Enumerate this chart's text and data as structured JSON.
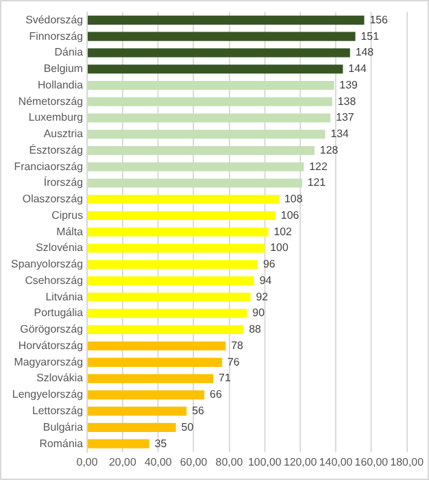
{
  "chart_data": {
    "type": "bar",
    "orientation": "horizontal",
    "categories": [
      "Svédország",
      "Finnország",
      "Dánia",
      "Belgium",
      "Hollandia",
      "Németország",
      "Luxemburg",
      "Ausztria",
      "Észtország",
      "Franciaország",
      "Írország",
      "Olaszország",
      "Ciprus",
      "Málta",
      "Szlovénia",
      "Spanyolország",
      "Csehország",
      "Litvánia",
      "Portugália",
      "Görögország",
      "Horvátország",
      "Magyarország",
      "Szlovákia",
      "Lengyelország",
      "Lettország",
      "Bulgária",
      "Románia"
    ],
    "values": [
      156,
      151,
      148,
      144,
      139,
      138,
      137,
      134,
      128,
      122,
      121,
      108,
      106,
      102,
      100,
      96,
      94,
      92,
      90,
      88,
      78,
      76,
      71,
      66,
      56,
      50,
      35
    ],
    "colors": [
      "#375623",
      "#375623",
      "#375623",
      "#375623",
      "#c5e0b4",
      "#c5e0b4",
      "#c5e0b4",
      "#c5e0b4",
      "#c5e0b4",
      "#c5e0b4",
      "#c5e0b4",
      "#ffff00",
      "#ffff00",
      "#ffff00",
      "#ffff00",
      "#ffff00",
      "#ffff00",
      "#ffff00",
      "#ffff00",
      "#ffff00",
      "#ffc000",
      "#ffc000",
      "#ffc000",
      "#ffc000",
      "#ffc000",
      "#ffc000",
      "#ffc000"
    ],
    "xlim": [
      0,
      180
    ],
    "xticks": [
      {
        "value": 0,
        "label": "0,00"
      },
      {
        "value": 20,
        "label": "20,00"
      },
      {
        "value": 40,
        "label": "40,00"
      },
      {
        "value": 60,
        "label": "60,00"
      },
      {
        "value": 80,
        "label": "80,00"
      },
      {
        "value": 100,
        "label": "100,00"
      },
      {
        "value": 120,
        "label": "120,00"
      },
      {
        "value": 140,
        "label": "140,00"
      },
      {
        "value": 160,
        "label": "160,00"
      },
      {
        "value": 180,
        "label": "180,00"
      }
    ],
    "grid": "x",
    "data_labels": true,
    "legend": false
  }
}
